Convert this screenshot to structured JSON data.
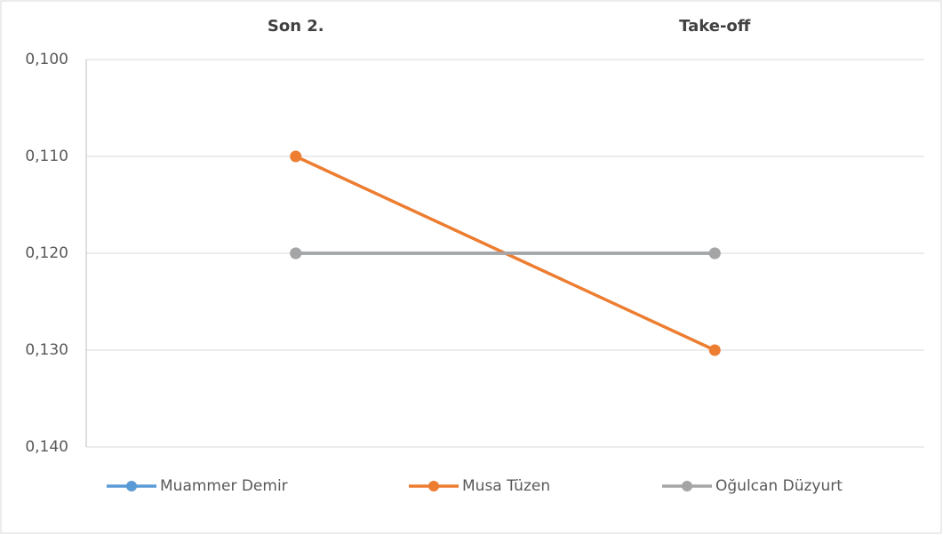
{
  "chart_data": {
    "type": "line",
    "categories": [
      "Son 2.",
      "Take-off"
    ],
    "series": [
      {
        "name": "Muammer Demir",
        "color": "#5b9bd5",
        "values": [
          0.12,
          0.12
        ]
      },
      {
        "name": "Musa Tüzen",
        "color": "#ed7d31",
        "values": [
          0.11,
          0.13
        ]
      },
      {
        "name": "Oğulcan Düzyurt",
        "color": "#a5a5a5",
        "values": [
          0.12,
          0.12
        ]
      }
    ],
    "ylim": [
      0.1,
      0.14
    ],
    "y_inverted": true,
    "yticks": [
      {
        "value": 0.1,
        "label": "0,100"
      },
      {
        "value": 0.11,
        "label": "0,110"
      },
      {
        "value": 0.12,
        "label": "0,120"
      },
      {
        "value": 0.13,
        "label": "0,130"
      },
      {
        "value": 0.14,
        "label": "0,140"
      }
    ],
    "grid": true,
    "legend": "bottom"
  }
}
